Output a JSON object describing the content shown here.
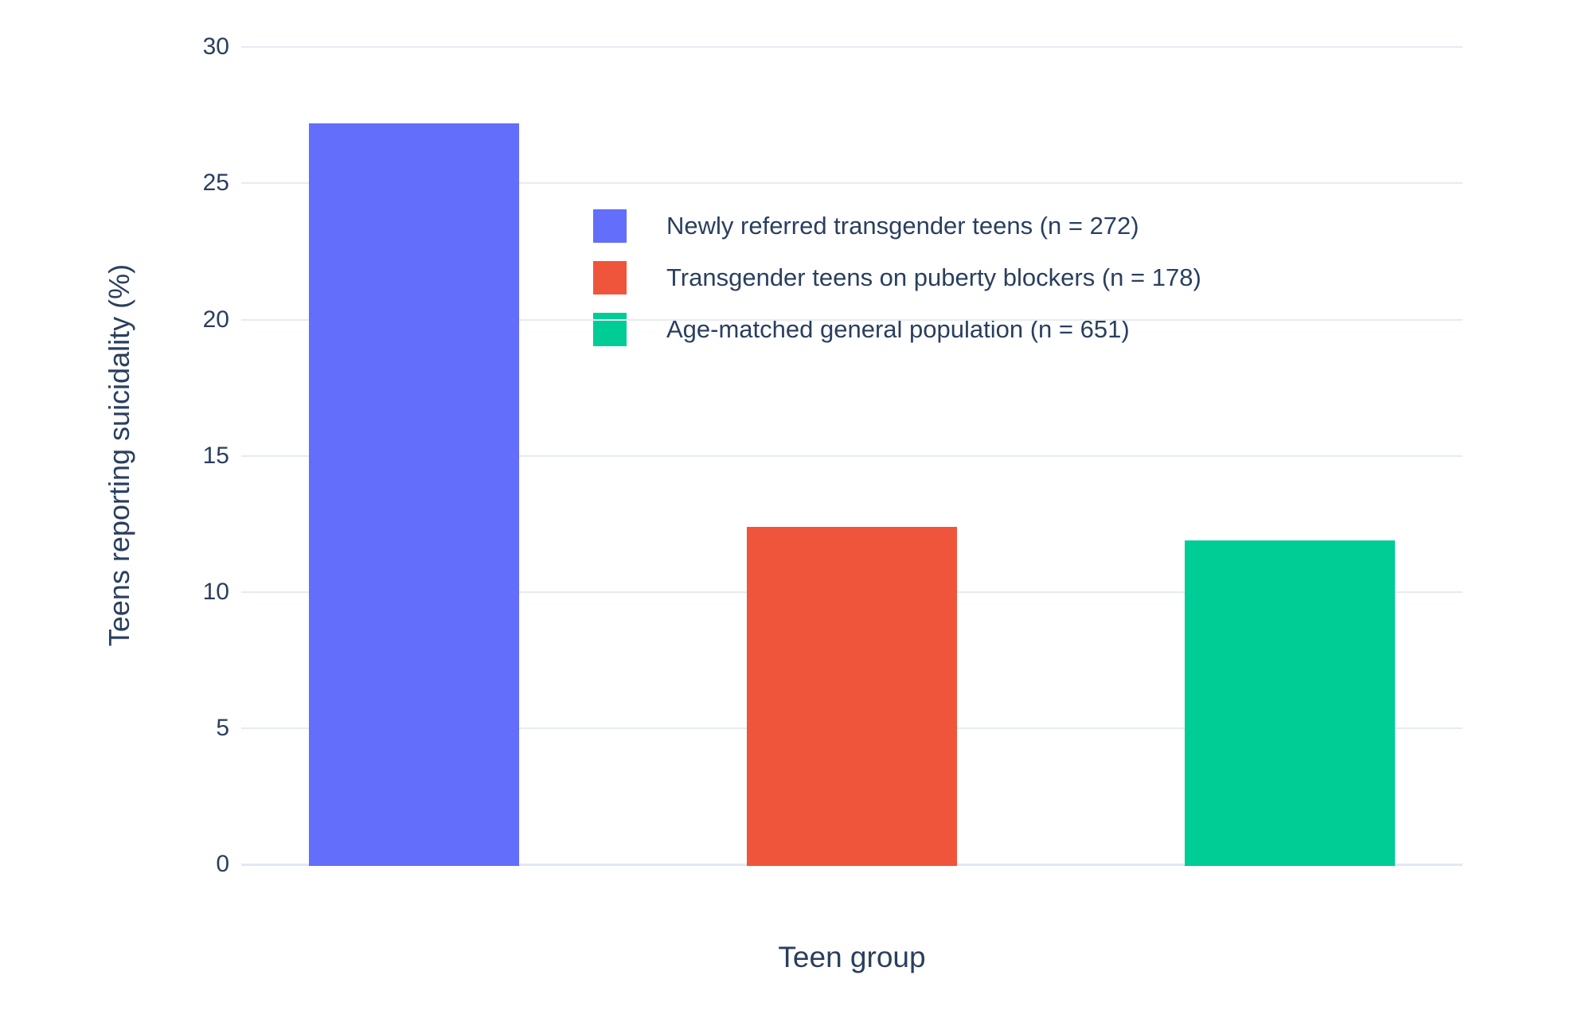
{
  "chart_data": {
    "type": "bar",
    "title": "",
    "xlabel": "Teen group",
    "ylabel": "Teens reporting suicidality (%)",
    "categories": [
      "Newly referred transgender teens (n = 272)",
      "Transgender teens on puberty blockers (n = 178)",
      "Age-matched general population (n = 651)"
    ],
    "values": [
      27.2,
      12.4,
      11.9
    ],
    "bar_colors": [
      "#636EFA",
      "#EF553B",
      "#00CC96"
    ],
    "ylim": [
      0,
      30
    ],
    "yticks": [
      0,
      5,
      10,
      15,
      20,
      25,
      30
    ],
    "grid": true,
    "x_tick_labels_shown": false,
    "legend_position": "inside-top-center",
    "legend": [
      {
        "label": "Newly referred transgender teens (n = 272)",
        "color": "#636EFA"
      },
      {
        "label": "Transgender teens on puberty blockers (n = 178)",
        "color": "#EF553B"
      },
      {
        "label": "Age-matched general population (n = 651)",
        "color": "#00CC96"
      }
    ]
  },
  "colors": {
    "background": "#ffffff",
    "text": "#2a3f5f",
    "gridline": "#e6ebf4",
    "zeroline": "#e2e8f2"
  }
}
